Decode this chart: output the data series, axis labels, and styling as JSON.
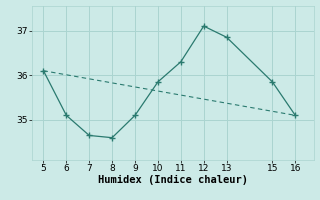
{
  "xlabel": "Humidex (Indice chaleur)",
  "bg_color": "#cceae7",
  "line_color": "#2a7a6f",
  "grid_color": "#aad4d0",
  "curve_x": [
    5,
    6,
    7,
    8,
    9,
    10,
    11,
    12,
    13,
    15,
    16
  ],
  "curve_y": [
    36.1,
    35.1,
    34.65,
    34.6,
    35.1,
    35.85,
    36.3,
    37.1,
    36.85,
    35.85,
    35.1
  ],
  "trend_x": [
    5,
    16
  ],
  "trend_y": [
    36.1,
    35.1
  ],
  "xlim": [
    4.5,
    16.8
  ],
  "ylim": [
    34.1,
    37.55
  ],
  "xticks": [
    5,
    6,
    7,
    8,
    9,
    10,
    11,
    12,
    13,
    15,
    16
  ],
  "yticks": [
    35,
    36,
    37
  ],
  "tick_fontsize": 6.5,
  "xlabel_fontsize": 7.5
}
